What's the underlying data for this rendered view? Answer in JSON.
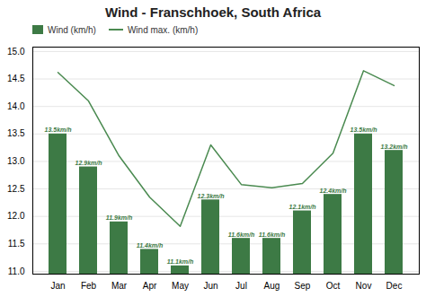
{
  "chart_data": {
    "type": "bar",
    "title": "Wind - Franschhoek, South Africa",
    "categories": [
      "Jan",
      "Feb",
      "Mar",
      "Apr",
      "May",
      "Jun",
      "Jul",
      "Aug",
      "Sep",
      "Oct",
      "Nov",
      "Dec"
    ],
    "series": [
      {
        "name": "Wind (km/h)",
        "type": "bar",
        "color": "#3d7a45",
        "data_labels": true,
        "values": [
          13.5,
          12.9,
          11.9,
          11.4,
          11.1,
          12.3,
          11.6,
          11.6,
          12.1,
          12.4,
          13.5,
          13.2
        ],
        "value_labels": [
          "13.5km/h",
          "12.9km/h",
          "11.9km/h",
          "11.4km/h",
          "11.1km/h",
          "12.3km/h",
          "11.6km/h",
          "11.6km/h",
          "12.1km/h",
          "12.4km/h",
          "13.5km/h",
          "13.2km/h"
        ]
      },
      {
        "name": "Wind max. (km/h)",
        "type": "line",
        "color": "#4a8a50",
        "values": [
          14.62,
          14.1,
          13.1,
          12.35,
          11.82,
          13.3,
          12.58,
          12.52,
          12.6,
          13.15,
          14.65,
          14.38
        ]
      }
    ],
    "ylim": [
      10.95,
      15.08
    ],
    "yticks": [
      {
        "value": 11,
        "label": "11.0"
      },
      11.5,
      {
        "value": 12,
        "label": "12.0"
      },
      12.5,
      {
        "value": 13,
        "label": "13.0"
      },
      13.5,
      {
        "value": 14,
        "label": "14.0"
      },
      14.5,
      {
        "value": 15,
        "label": "15.0"
      }
    ],
    "grid": true,
    "legend": "upper left"
  }
}
